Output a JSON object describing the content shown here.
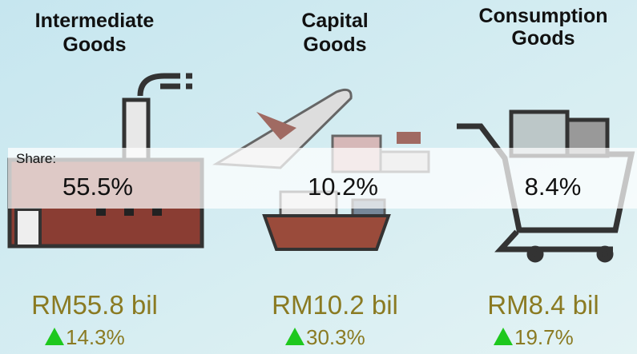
{
  "share_label": "Share:",
  "items": [
    {
      "title": [
        "Intermediate",
        "Goods"
      ],
      "share": "55.5%",
      "value": "RM55.8 bil",
      "growth": "14.3%"
    },
    {
      "title": [
        "Capital",
        "Goods"
      ],
      "share": "10.2%",
      "value": "RM10.2 bil",
      "growth": "30.3%"
    },
    {
      "title": [
        "Consumption",
        "Goods"
      ],
      "share": "8.4%",
      "value": "RM8.4 bil",
      "growth": "19.7%"
    }
  ]
}
